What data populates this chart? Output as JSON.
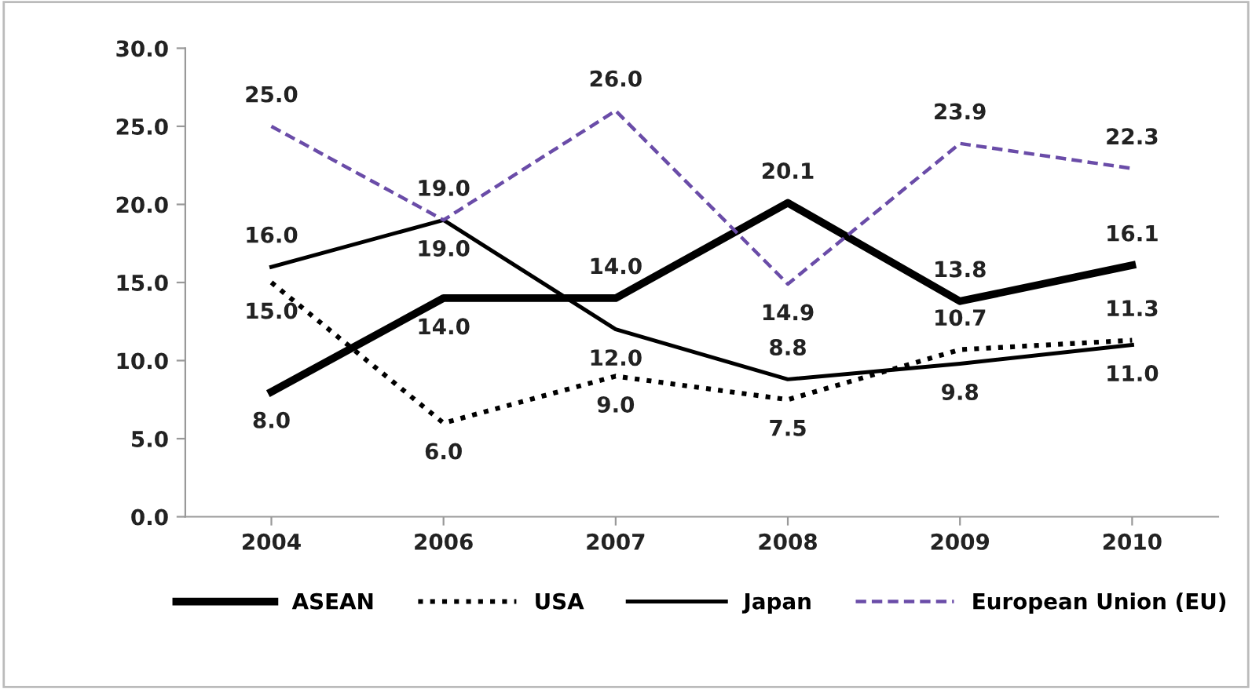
{
  "chart_data": {
    "type": "line",
    "categories": [
      "2004",
      "2006",
      "2007",
      "2008",
      "2009",
      "2010"
    ],
    "ylim": [
      0,
      30
    ],
    "yticks": [
      {
        "value": 0,
        "label": "0.0"
      },
      {
        "value": 5,
        "label": "5.0"
      },
      {
        "value": 10,
        "label": "10.0"
      },
      {
        "value": 15,
        "label": "15.0"
      },
      {
        "value": 20,
        "label": "20.0"
      },
      {
        "value": 25,
        "label": "25.0"
      },
      {
        "value": 30,
        "label": "30.0"
      }
    ],
    "legend": "bottom",
    "grid": false,
    "series": [
      {
        "name": "ASEAN",
        "color": "#000000",
        "line_style": "solid",
        "values": [
          8.0,
          14.0,
          14.0,
          20.1,
          13.8,
          16.1
        ],
        "value_labels": [
          "8.0",
          "14.0",
          "14.0",
          "20.1",
          "13.8",
          "16.1"
        ]
      },
      {
        "name": "USA",
        "color": "#000000",
        "line_style": "dotted",
        "values": [
          15.0,
          6.0,
          9.0,
          7.5,
          10.7,
          11.3
        ],
        "value_labels": [
          "15.0",
          "6.0",
          "9.0",
          "7.5",
          "10.7",
          "11.3"
        ]
      },
      {
        "name": "Japan",
        "color": "#000000",
        "line_style": "solid",
        "values": [
          16.0,
          19.0,
          12.0,
          8.8,
          9.8,
          11.0
        ],
        "value_labels": [
          "16.0",
          "19.0",
          "12.0",
          "8.8",
          "9.8",
          "11.0"
        ]
      },
      {
        "name": "European Union (EU)",
        "color": "#6a4ca8",
        "line_style": "dashed",
        "values": [
          25.0,
          19.0,
          26.0,
          14.9,
          23.9,
          22.3
        ],
        "value_labels": [
          "25.0",
          "19.0",
          "26.0",
          "14.9",
          "23.9",
          "22.3"
        ]
      }
    ]
  }
}
